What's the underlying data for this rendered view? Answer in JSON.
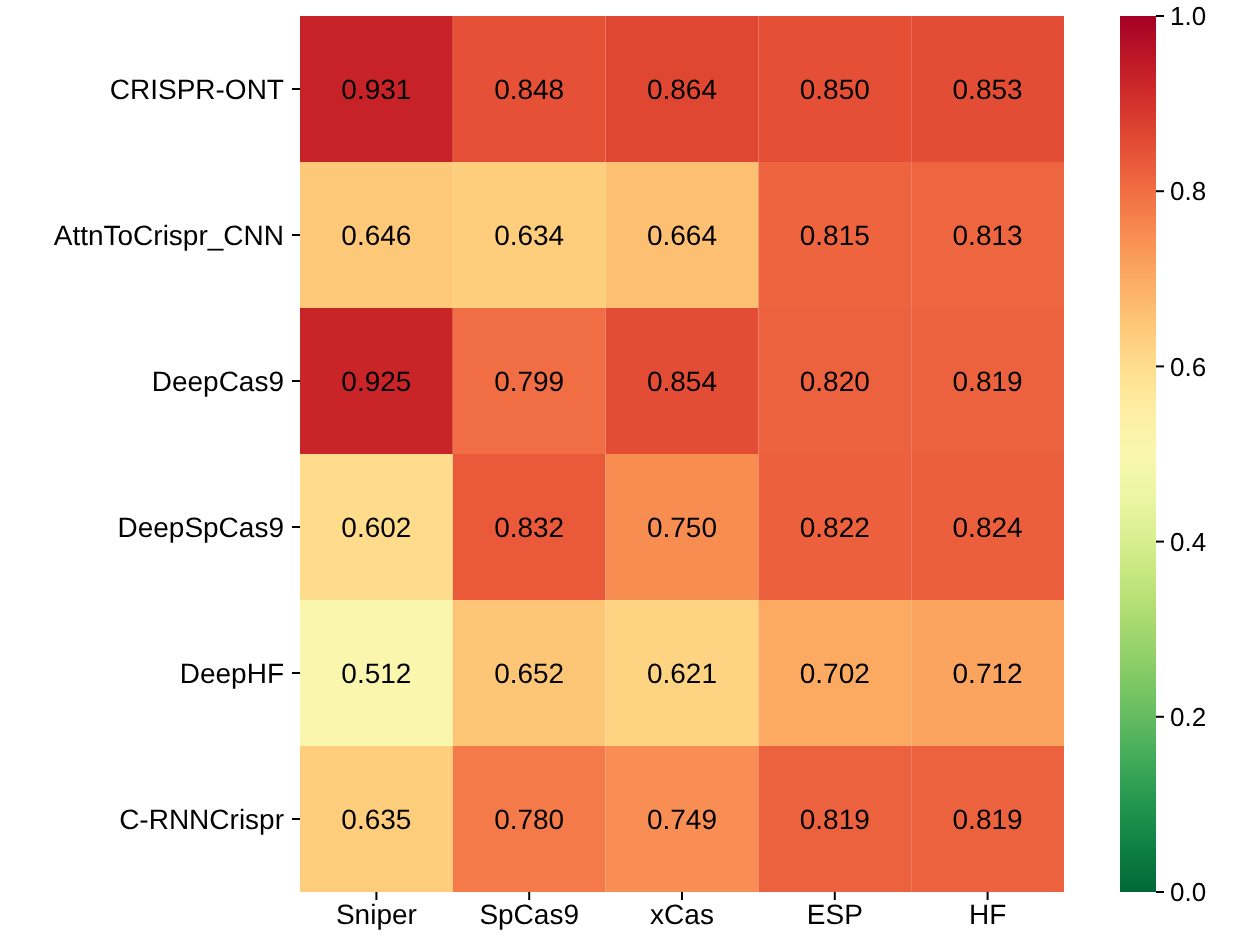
{
  "chart_data": {
    "type": "heatmap",
    "categories": [
      "Sniper",
      "SpCas9",
      "xCas",
      "ESP",
      "HF"
    ],
    "y_categories": [
      "CRISPR-ONT",
      "AttnToCrispr_CNN",
      "DeepCas9",
      "DeepSpCas9",
      "DeepHF",
      "C-RNNCrispr"
    ],
    "cells": [
      [
        0.931,
        0.848,
        0.864,
        0.85,
        0.853
      ],
      [
        0.646,
        0.634,
        0.664,
        0.815,
        0.813
      ],
      [
        0.925,
        0.799,
        0.854,
        0.82,
        0.819
      ],
      [
        0.602,
        0.832,
        0.75,
        0.822,
        0.824
      ],
      [
        0.512,
        0.652,
        0.621,
        0.702,
        0.712
      ],
      [
        0.635,
        0.78,
        0.749,
        0.819,
        0.819
      ]
    ],
    "cell_labels": [
      [
        "0.931",
        "0.848",
        "0.864",
        "0.850",
        "0.853"
      ],
      [
        "0.646",
        "0.634",
        "0.664",
        "0.815",
        "0.813"
      ],
      [
        "0.925",
        "0.799",
        "0.854",
        "0.820",
        "0.819"
      ],
      [
        "0.602",
        "0.832",
        "0.750",
        "0.822",
        "0.824"
      ],
      [
        "0.512",
        "0.652",
        "0.621",
        "0.702",
        "0.712"
      ],
      [
        "0.635",
        "0.780",
        "0.749",
        "0.819",
        "0.819"
      ]
    ],
    "clim": [
      0,
      1
    ],
    "cticks": [
      {
        "value": 0,
        "label": "0.0"
      },
      0.2,
      0.4,
      0.6,
      0.8,
      {
        "value": 1,
        "label": "1.0"
      }
    ]
  }
}
